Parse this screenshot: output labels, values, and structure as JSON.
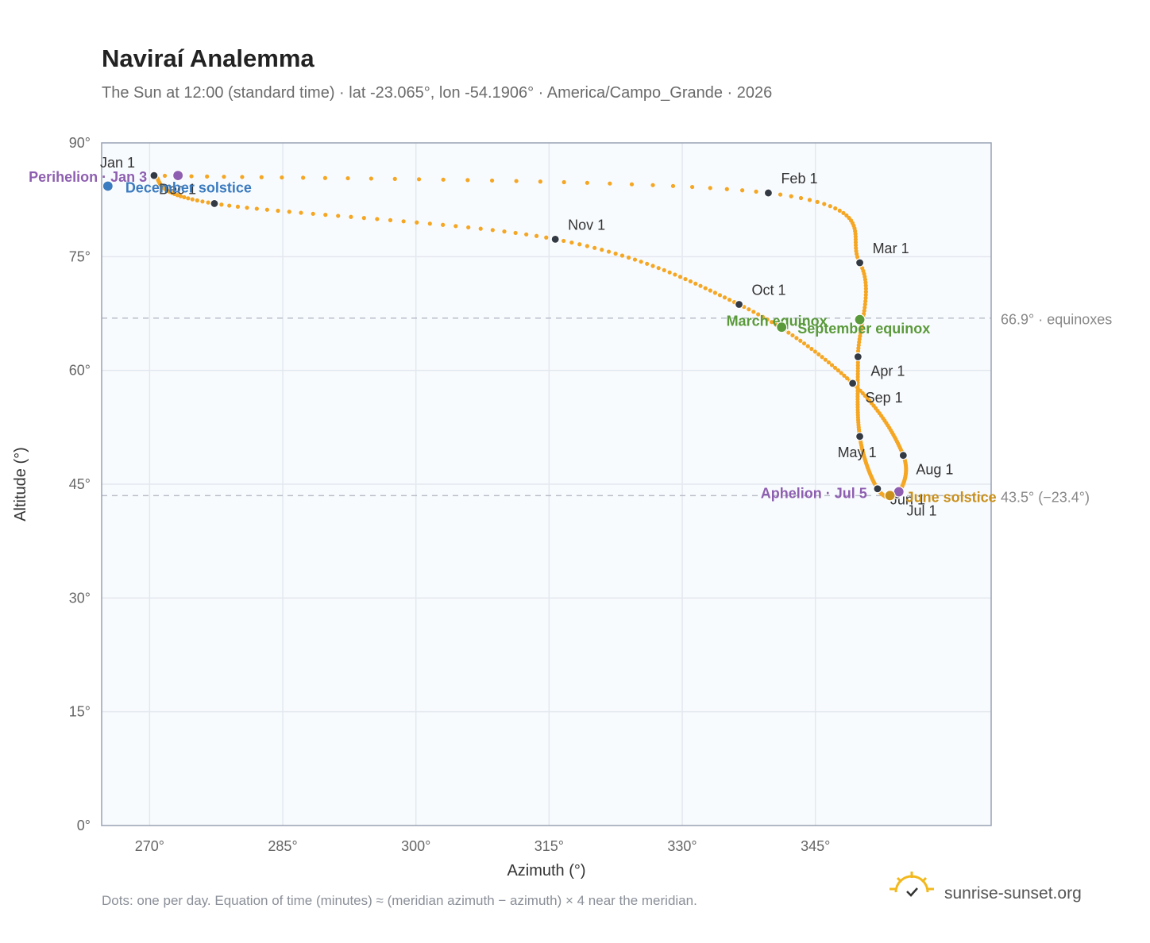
{
  "header": {
    "title": "Naviraí Analemma",
    "subtitle": "The Sun at 12:00 (standard time) · lat -23.065°, lon -54.1906° · America/Campo_Grande · 2026"
  },
  "footer": {
    "note": "Dots: one per day. Equation of time (minutes) ≈ (meridian azimuth − azimuth) × 4 near the meridian.",
    "brand": "sunrise-sunset.org"
  },
  "chart_data": {
    "type": "scatter",
    "xlabel": "Azimuth (°)",
    "ylabel": "Altitude (°)",
    "xlim": [
      264.6,
      364.8
    ],
    "ylim": [
      0,
      90
    ],
    "xticks": [
      270,
      285,
      300,
      315,
      330,
      345
    ],
    "yticks": [
      0,
      15,
      30,
      45,
      60,
      75,
      90
    ],
    "xtick_labels": [
      "270°",
      "285°",
      "300°",
      "315°",
      "330°",
      "345°"
    ],
    "ytick_labels": [
      "0°",
      "15°",
      "30°",
      "45°",
      "60°",
      "75°",
      "90°"
    ],
    "grid": true,
    "series_color": "#f5a623",
    "month_markers": [
      {
        "label": "Jan 1",
        "azimuth": 270.5,
        "altitude": 85.7
      },
      {
        "label": "Feb 1",
        "azimuth": 339.7,
        "altitude": 83.4
      },
      {
        "label": "Mar 1",
        "azimuth": 350.0,
        "altitude": 74.2
      },
      {
        "label": "Apr 1",
        "azimuth": 349.8,
        "altitude": 61.8
      },
      {
        "label": "May 1",
        "azimuth": 350.0,
        "altitude": 51.3
      },
      {
        "label": "Jun 1",
        "azimuth": 352.0,
        "altitude": 44.4
      },
      {
        "label": "Jul 1",
        "azimuth": 354.2,
        "altitude": 43.6
      },
      {
        "label": "Aug 1",
        "azimuth": 354.9,
        "altitude": 48.8
      },
      {
        "label": "Sep 1",
        "azimuth": 349.2,
        "altitude": 58.3
      },
      {
        "label": "Oct 1",
        "azimuth": 336.4,
        "altitude": 68.7
      },
      {
        "label": "Nov 1",
        "azimuth": 315.7,
        "altitude": 77.3
      },
      {
        "label": "Dec 1",
        "azimuth": 277.3,
        "altitude": 82.0
      }
    ],
    "events": [
      {
        "label": "Perihelion · Jan 3",
        "azimuth": 273.2,
        "altitude": 85.7,
        "color": "#8e5fb0"
      },
      {
        "label": "December solstice",
        "azimuth": 265.3,
        "altitude": 84.3,
        "color": "#3b7bbf"
      },
      {
        "label": "March equinox",
        "azimuth": 350.0,
        "altitude": 66.7,
        "color": "#5a9a3a"
      },
      {
        "label": "September equinox",
        "azimuth": 341.2,
        "altitude": 65.7,
        "color": "#5a9a3a"
      },
      {
        "label": "Aphelion · Jul 5",
        "azimuth": 354.4,
        "altitude": 44.0,
        "color": "#8e5fb0"
      },
      {
        "label": "June solstice",
        "azimuth": 353.4,
        "altitude": 43.5,
        "color": "#c9901b"
      }
    ],
    "reference_lines": [
      {
        "altitude": 66.9,
        "label": "66.9° · equinoxes"
      },
      {
        "altitude": 43.5,
        "label": "43.5° (−23.4°)"
      }
    ]
  }
}
